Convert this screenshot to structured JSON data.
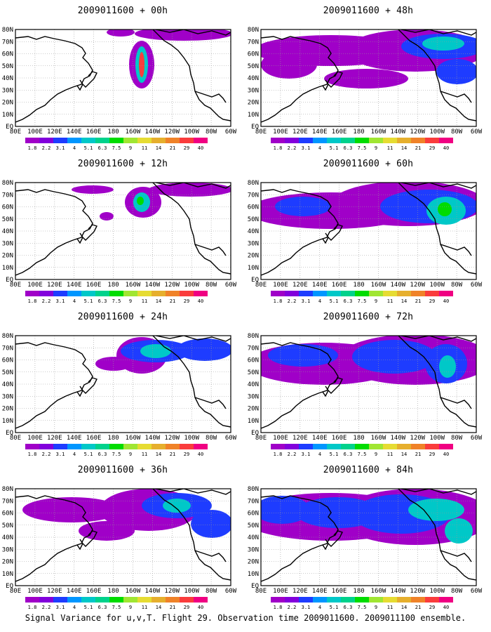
{
  "figure": {
    "caption": "Signal Variance for u,v,T. Flight 29. Observation time 2009011600. 2009011100 ensemble.",
    "colorbar": {
      "labels": [
        "1.8",
        "2.2",
        "3.1",
        "4",
        "5.1",
        "6.3",
        "7.5",
        "9",
        "11",
        "14",
        "21",
        "29",
        "40"
      ],
      "colors": [
        "#a000c8",
        "#8200dc",
        "#1e3cff",
        "#0096ff",
        "#00c8c8",
        "#00d28c",
        "#00dc00",
        "#a0e632",
        "#e6dc32",
        "#e6af2d",
        "#f08228",
        "#fa3c3c",
        "#f00082"
      ]
    },
    "axes": {
      "x_labels": [
        "80E",
        "100E",
        "120E",
        "140E",
        "160E",
        "180",
        "160W",
        "140W",
        "120W",
        "100W",
        "80W",
        "60W"
      ],
      "y_labels": [
        "EQ",
        "10N",
        "20N",
        "30N",
        "40N",
        "50N",
        "60N",
        "70N",
        "80N"
      ]
    },
    "panels": [
      {
        "id": "00h",
        "title": "2009011600 + 00h"
      },
      {
        "id": "48h",
        "title": "2009011600 + 48h"
      },
      {
        "id": "12h",
        "title": "2009011600 + 12h"
      },
      {
        "id": "60h",
        "title": "2009011600 + 60h"
      },
      {
        "id": "24h",
        "title": "2009011600 + 24h"
      },
      {
        "id": "72h",
        "title": "2009011600 + 72h"
      },
      {
        "id": "36h",
        "title": "2009011600 + 36h"
      },
      {
        "id": "84h",
        "title": "2009011600 + 84h"
      }
    ]
  }
}
